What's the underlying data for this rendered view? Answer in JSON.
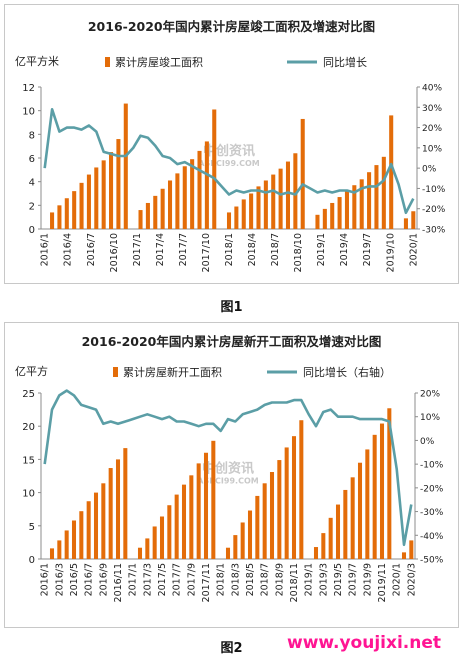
{
  "chart_data": [
    {
      "type": "bar",
      "title": "2016-2020年国内累计房屋竣工面积及增速对比图",
      "left_unit": "亿平方米",
      "legend": {
        "bar": "累计房屋竣工面积",
        "line": "同比增长"
      },
      "left_axis": {
        "min": 0,
        "max": 12,
        "ticks": [
          "0",
          "2",
          "4",
          "6",
          "8",
          "10",
          "12"
        ]
      },
      "right_axis": {
        "min": -30,
        "max": 40,
        "ticks": [
          "-30%",
          "-20%",
          "-10%",
          "0%",
          "10%",
          "20%",
          "30%",
          "40%"
        ]
      },
      "x_labels": [
        "2016/1",
        "2016/4",
        "2016/7",
        "2016/10",
        "2017/1",
        "2017/4",
        "2017/7",
        "2017/10",
        "2018/1",
        "2018/4",
        "2018/7",
        "2018/10",
        "2019/1",
        "2019/4",
        "2019/7",
        "2019/10",
        "2020/1"
      ],
      "bars": [
        {
          "x": 2,
          "v": 1.4
        },
        {
          "x": 3,
          "v": 2.0
        },
        {
          "x": 4,
          "v": 2.6
        },
        {
          "x": 5,
          "v": 3.2
        },
        {
          "x": 6,
          "v": 3.9
        },
        {
          "x": 7,
          "v": 4.6
        },
        {
          "x": 8,
          "v": 5.2
        },
        {
          "x": 9,
          "v": 5.8
        },
        {
          "x": 10,
          "v": 6.5
        },
        {
          "x": 11,
          "v": 7.6
        },
        {
          "x": 12,
          "v": 10.6
        },
        {
          "x": 14,
          "v": 1.6
        },
        {
          "x": 15,
          "v": 2.2
        },
        {
          "x": 16,
          "v": 2.8
        },
        {
          "x": 17,
          "v": 3.4
        },
        {
          "x": 18,
          "v": 4.1
        },
        {
          "x": 19,
          "v": 4.7
        },
        {
          "x": 20,
          "v": 5.3
        },
        {
          "x": 21,
          "v": 5.9
        },
        {
          "x": 22,
          "v": 6.6
        },
        {
          "x": 23,
          "v": 7.4
        },
        {
          "x": 24,
          "v": 10.1
        },
        {
          "x": 26,
          "v": 1.4
        },
        {
          "x": 27,
          "v": 1.9
        },
        {
          "x": 28,
          "v": 2.5
        },
        {
          "x": 29,
          "v": 3.0
        },
        {
          "x": 30,
          "v": 3.6
        },
        {
          "x": 31,
          "v": 4.1
        },
        {
          "x": 32,
          "v": 4.6
        },
        {
          "x": 33,
          "v": 5.1
        },
        {
          "x": 34,
          "v": 5.7
        },
        {
          "x": 35,
          "v": 6.4
        },
        {
          "x": 36,
          "v": 9.3
        },
        {
          "x": 38,
          "v": 1.2
        },
        {
          "x": 39,
          "v": 1.7
        },
        {
          "x": 40,
          "v": 2.2
        },
        {
          "x": 41,
          "v": 2.7
        },
        {
          "x": 42,
          "v": 3.2
        },
        {
          "x": 43,
          "v": 3.7
        },
        {
          "x": 44,
          "v": 4.2
        },
        {
          "x": 45,
          "v": 4.8
        },
        {
          "x": 46,
          "v": 5.4
        },
        {
          "x": 47,
          "v": 6.1
        },
        {
          "x": 48,
          "v": 9.6
        },
        {
          "x": 50,
          "v": 0.9
        },
        {
          "x": 51,
          "v": 1.5
        }
      ],
      "line": [
        {
          "x": 1,
          "v": 0
        },
        {
          "x": 2,
          "v": 29
        },
        {
          "x": 3,
          "v": 18
        },
        {
          "x": 4,
          "v": 20
        },
        {
          "x": 5,
          "v": 20
        },
        {
          "x": 6,
          "v": 19
        },
        {
          "x": 7,
          "v": 21
        },
        {
          "x": 8,
          "v": 18
        },
        {
          "x": 9,
          "v": 8
        },
        {
          "x": 10,
          "v": 7
        },
        {
          "x": 11,
          "v": 6
        },
        {
          "x": 12,
          "v": 6
        },
        {
          "x": 13,
          "v": 10
        },
        {
          "x": 14,
          "v": 16
        },
        {
          "x": 15,
          "v": 15
        },
        {
          "x": 16,
          "v": 11
        },
        {
          "x": 17,
          "v": 6
        },
        {
          "x": 18,
          "v": 5
        },
        {
          "x": 19,
          "v": 2
        },
        {
          "x": 20,
          "v": 3
        },
        {
          "x": 21,
          "v": 1
        },
        {
          "x": 22,
          "v": -1
        },
        {
          "x": 23,
          "v": -3
        },
        {
          "x": 24,
          "v": -5
        },
        {
          "x": 25,
          "v": -9
        },
        {
          "x": 26,
          "v": -13
        },
        {
          "x": 27,
          "v": -11
        },
        {
          "x": 28,
          "v": -12
        },
        {
          "x": 29,
          "v": -11
        },
        {
          "x": 30,
          "v": -11
        },
        {
          "x": 31,
          "v": -12
        },
        {
          "x": 32,
          "v": -11
        },
        {
          "x": 33,
          "v": -13
        },
        {
          "x": 34,
          "v": -12
        },
        {
          "x": 35,
          "v": -13
        },
        {
          "x": 36,
          "v": -8
        },
        {
          "x": 37,
          "v": -10
        },
        {
          "x": 38,
          "v": -12
        },
        {
          "x": 39,
          "v": -11
        },
        {
          "x": 40,
          "v": -12
        },
        {
          "x": 41,
          "v": -11
        },
        {
          "x": 42,
          "v": -11
        },
        {
          "x": 43,
          "v": -12
        },
        {
          "x": 44,
          "v": -10
        },
        {
          "x": 45,
          "v": -9
        },
        {
          "x": 46,
          "v": -9
        },
        {
          "x": 47,
          "v": -6
        },
        {
          "x": 48,
          "v": 2
        },
        {
          "x": 49,
          "v": -8
        },
        {
          "x": 50,
          "v": -22
        },
        {
          "x": 51,
          "v": -15
        }
      ],
      "x_range": [
        1,
        51
      ]
    },
    {
      "type": "bar",
      "title": "2016-2020年国内累计房屋新开工面积及增速对比图",
      "left_unit": "亿平方",
      "legend": {
        "bar": "累计房屋新开工面积",
        "line": "同比增长（右轴）"
      },
      "left_axis": {
        "min": 0,
        "max": 25,
        "ticks": [
          "0",
          "5",
          "10",
          "15",
          "20",
          "25"
        ]
      },
      "right_axis": {
        "min": -50,
        "max": 20,
        "ticks": [
          "-50%",
          "-40%",
          "-30%",
          "-20%",
          "-10%",
          "0%",
          "10%",
          "20%"
        ]
      },
      "x_labels": [
        "2016/1",
        "2016/3",
        "2016/5",
        "2016/7",
        "2016/9",
        "2016/11",
        "2017/1",
        "2017/3",
        "2017/5",
        "2017/7",
        "2017/9",
        "2017/11",
        "2018/1",
        "2018/3",
        "2018/5",
        "2018/7",
        "2018/9",
        "2018/11",
        "2019/1",
        "2019/3",
        "2019/5",
        "2019/7",
        "2019/9",
        "2019/11",
        "2020/1",
        "2020/3"
      ],
      "bars": [
        {
          "x": 2,
          "v": 1.6
        },
        {
          "x": 3,
          "v": 2.8
        },
        {
          "x": 4,
          "v": 4.3
        },
        {
          "x": 5,
          "v": 5.8
        },
        {
          "x": 6,
          "v": 7.2
        },
        {
          "x": 7,
          "v": 8.7
        },
        {
          "x": 8,
          "v": 10.0
        },
        {
          "x": 9,
          "v": 11.4
        },
        {
          "x": 10,
          "v": 13.7
        },
        {
          "x": 11,
          "v": 15.0
        },
        {
          "x": 12,
          "v": 16.7
        },
        {
          "x": 14,
          "v": 1.7
        },
        {
          "x": 15,
          "v": 3.1
        },
        {
          "x": 16,
          "v": 4.9
        },
        {
          "x": 17,
          "v": 6.4
        },
        {
          "x": 18,
          "v": 8.1
        },
        {
          "x": 19,
          "v": 9.7
        },
        {
          "x": 20,
          "v": 11.2
        },
        {
          "x": 21,
          "v": 12.6
        },
        {
          "x": 22,
          "v": 14.4
        },
        {
          "x": 23,
          "v": 16.0
        },
        {
          "x": 24,
          "v": 17.8
        },
        {
          "x": 26,
          "v": 1.7
        },
        {
          "x": 27,
          "v": 3.6
        },
        {
          "x": 28,
          "v": 5.5
        },
        {
          "x": 29,
          "v": 7.3
        },
        {
          "x": 30,
          "v": 9.5
        },
        {
          "x": 31,
          "v": 11.4
        },
        {
          "x": 32,
          "v": 13.1
        },
        {
          "x": 33,
          "v": 14.9
        },
        {
          "x": 34,
          "v": 16.8
        },
        {
          "x": 35,
          "v": 18.5
        },
        {
          "x": 36,
          "v": 20.9
        },
        {
          "x": 38,
          "v": 1.8
        },
        {
          "x": 39,
          "v": 3.9
        },
        {
          "x": 40,
          "v": 6.2
        },
        {
          "x": 41,
          "v": 8.2
        },
        {
          "x": 42,
          "v": 10.4
        },
        {
          "x": 43,
          "v": 12.3
        },
        {
          "x": 44,
          "v": 14.5
        },
        {
          "x": 45,
          "v": 16.5
        },
        {
          "x": 46,
          "v": 18.7
        },
        {
          "x": 47,
          "v": 20.4
        },
        {
          "x": 48,
          "v": 22.7
        },
        {
          "x": 50,
          "v": 1.0
        },
        {
          "x": 51,
          "v": 2.8
        }
      ],
      "line": [
        {
          "x": 1,
          "v": -10
        },
        {
          "x": 2,
          "v": 13
        },
        {
          "x": 3,
          "v": 19
        },
        {
          "x": 4,
          "v": 21
        },
        {
          "x": 5,
          "v": 19
        },
        {
          "x": 6,
          "v": 15
        },
        {
          "x": 7,
          "v": 14
        },
        {
          "x": 8,
          "v": 13
        },
        {
          "x": 9,
          "v": 7
        },
        {
          "x": 10,
          "v": 8
        },
        {
          "x": 11,
          "v": 7
        },
        {
          "x": 12,
          "v": 8
        },
        {
          "x": 13,
          "v": 9
        },
        {
          "x": 14,
          "v": 10
        },
        {
          "x": 15,
          "v": 11
        },
        {
          "x": 16,
          "v": 10
        },
        {
          "x": 17,
          "v": 9
        },
        {
          "x": 18,
          "v": 10
        },
        {
          "x": 19,
          "v": 8
        },
        {
          "x": 20,
          "v": 8
        },
        {
          "x": 21,
          "v": 7
        },
        {
          "x": 22,
          "v": 6
        },
        {
          "x": 23,
          "v": 7
        },
        {
          "x": 24,
          "v": 7
        },
        {
          "x": 25,
          "v": 4
        },
        {
          "x": 26,
          "v": 9
        },
        {
          "x": 27,
          "v": 8
        },
        {
          "x": 28,
          "v": 11
        },
        {
          "x": 29,
          "v": 12
        },
        {
          "x": 30,
          "v": 13
        },
        {
          "x": 31,
          "v": 15
        },
        {
          "x": 32,
          "v": 16
        },
        {
          "x": 33,
          "v": 16
        },
        {
          "x": 34,
          "v": 16
        },
        {
          "x": 35,
          "v": 17
        },
        {
          "x": 36,
          "v": 17
        },
        {
          "x": 37,
          "v": 11
        },
        {
          "x": 38,
          "v": 6
        },
        {
          "x": 39,
          "v": 12
        },
        {
          "x": 40,
          "v": 13
        },
        {
          "x": 41,
          "v": 10
        },
        {
          "x": 42,
          "v": 10
        },
        {
          "x": 43,
          "v": 10
        },
        {
          "x": 44,
          "v": 9
        },
        {
          "x": 45,
          "v": 9
        },
        {
          "x": 46,
          "v": 9
        },
        {
          "x": 47,
          "v": 9
        },
        {
          "x": 48,
          "v": 8
        },
        {
          "x": 49,
          "v": -12
        },
        {
          "x": 50,
          "v": -44
        },
        {
          "x": 51,
          "v": -27
        }
      ],
      "x_range": [
        1,
        51
      ]
    }
  ],
  "captions": {
    "fig1": "图1",
    "fig2": "图2"
  },
  "watermarks": {
    "center_line1": "中创资讯",
    "center_line2": "ASKCI99.COM",
    "site": "www.youjixi.net"
  },
  "colors": {
    "bar": "#e36c09",
    "line": "#5b9ea6",
    "axis": "#8c8c8c",
    "text": "#222222"
  }
}
